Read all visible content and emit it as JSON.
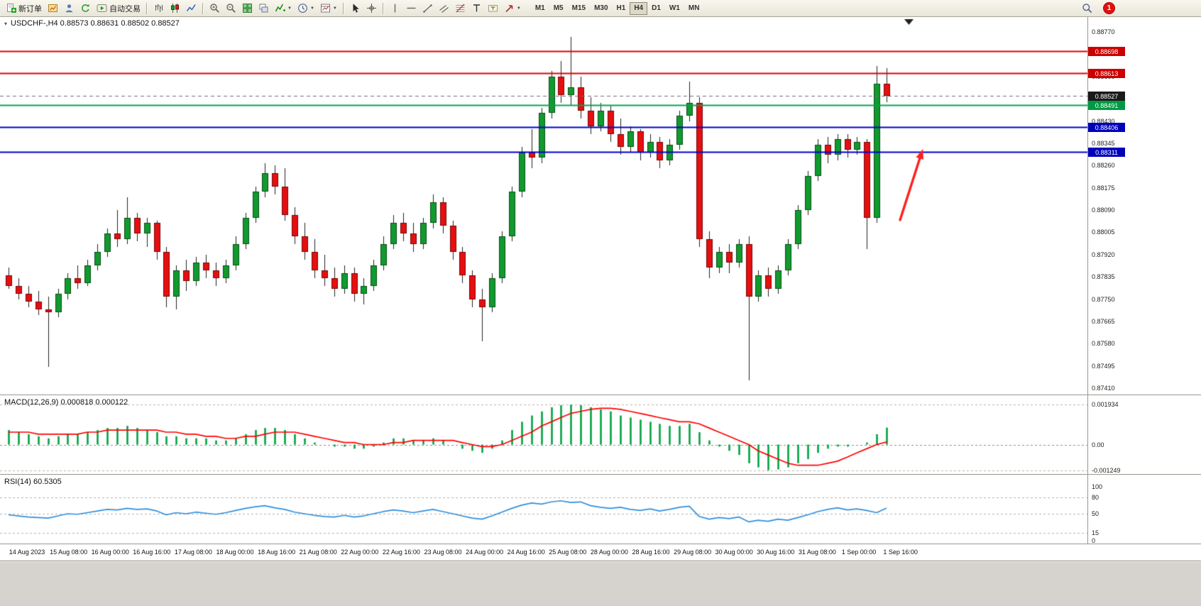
{
  "toolbar": {
    "left_buttons": [
      {
        "name": "new-order",
        "icon": "new-order-icon",
        "label": "新订单"
      },
      {
        "name": "chart-window",
        "icon": "chart-window-icon"
      },
      {
        "name": "profile",
        "icon": "profile-icon"
      },
      {
        "name": "refresh",
        "icon": "refresh-icon"
      },
      {
        "name": "autotrading",
        "icon": "autotrading-icon",
        "label": "自动交易"
      },
      {
        "sep": true
      },
      {
        "name": "bar-chart",
        "icon": "bar-chart-icon"
      },
      {
        "name": "candlestick-chart",
        "icon": "candlestick-icon"
      },
      {
        "name": "line-chart",
        "icon": "line-chart-icon"
      },
      {
        "sep": true
      },
      {
        "name": "zoom-in",
        "icon": "zoom-in-icon"
      },
      {
        "name": "zoom-out",
        "icon": "zoom-out-icon"
      },
      {
        "name": "tile-windows",
        "icon": "tile-windows-icon"
      },
      {
        "name": "arrange-windows",
        "icon": "arrange-windows-icon"
      },
      {
        "name": "indicators",
        "icon": "indicators-icon",
        "caret": true
      },
      {
        "name": "periods",
        "icon": "clock-icon",
        "caret": true
      },
      {
        "name": "templates",
        "icon": "template-icon",
        "caret": true
      },
      {
        "sep": true
      },
      {
        "name": "cursor",
        "icon": "cursor-icon"
      },
      {
        "name": "crosshair",
        "icon": "crosshair-icon"
      },
      {
        "sep": true
      },
      {
        "name": "vertical-line",
        "icon": "vertical-line-icon"
      },
      {
        "name": "horizontal-line",
        "icon": "horizontal-line-icon"
      },
      {
        "name": "trendline",
        "icon": "trendline-icon"
      },
      {
        "name": "equidistant-channel",
        "icon": "channel-icon"
      },
      {
        "name": "fibonacci",
        "icon": "fibonacci-icon"
      },
      {
        "name": "text",
        "icon": "text-icon"
      },
      {
        "name": "text-label",
        "icon": "text-label-icon"
      },
      {
        "name": "arrow-objects",
        "icon": "arrow-shape-icon",
        "caret": true
      }
    ],
    "timeframes": [
      "M1",
      "M5",
      "M15",
      "M30",
      "H1",
      "H4",
      "D1",
      "W1",
      "MN"
    ],
    "active_timeframe": "H4",
    "right": {
      "search_icon": "search-icon",
      "notification_count": "1"
    }
  },
  "chart": {
    "title": "USDCHF-,H4 0.88573 0.88631 0.88502 0.88527"
  },
  "chart_data": {
    "type": "candlestick",
    "symbol": "USDCHF",
    "period": "H4",
    "current_ohlc": {
      "open": 0.88573,
      "high": 0.88631,
      "low": 0.88502,
      "close": 0.88527
    },
    "colors": {
      "up": "#119a2e",
      "down": "#e60f0f",
      "wick": "#222222",
      "macd_hist": "#00a33f",
      "macd_signal": "#ff0000",
      "rsi_line": "#2f8fdd",
      "arrow": "#ff1f1f"
    },
    "price_ticks": [
      0.8877,
      0.88685,
      0.886,
      0.88515,
      0.8843,
      0.88345,
      0.8826,
      0.88175,
      0.8809,
      0.88005,
      0.8792,
      0.87835,
      0.8775,
      0.87665,
      0.8758,
      0.87495,
      0.8741
    ],
    "levels": [
      {
        "price": 0.88698,
        "line_color": "#dd0000",
        "box_color": "#cc0000",
        "style": "solid",
        "width": 2
      },
      {
        "price": 0.88613,
        "line_color": "#dd0000",
        "box_color": "#cc0000",
        "style": "solid",
        "width": 2
      },
      {
        "price": 0.88527,
        "line_color": "#6f6f6f",
        "box_color": "#1a1a1a",
        "style": "dash",
        "width": 1
      },
      {
        "price": 0.88491,
        "line_color": "#00a651",
        "box_color": "#009944",
        "style": "solid",
        "width": 2
      },
      {
        "price": 0.88406,
        "line_color": "#0000cc",
        "box_color": "#0000bb",
        "style": "solid",
        "width": 2
      },
      {
        "price": 0.88311,
        "line_color": "#0000cc",
        "box_color": "#0000bb",
        "style": "solid",
        "width": 2
      }
    ],
    "time_labels": [
      "14 Aug 2023",
      "15 Aug 08:00",
      "16 Aug 00:00",
      "16 Aug 16:00",
      "17 Aug 08:00",
      "18 Aug 00:00",
      "18 Aug 16:00",
      "21 Aug 08:00",
      "22 Aug 00:00",
      "22 Aug 16:00",
      "23 Aug 08:00",
      "24 Aug 00:00",
      "24 Aug 16:00",
      "25 Aug 08:00",
      "28 Aug 00:00",
      "28 Aug 16:00",
      "29 Aug 08:00",
      "30 Aug 00:00",
      "30 Aug 16:00",
      "31 Aug 08:00",
      "1 Sep 00:00",
      "1 Sep 16:00"
    ],
    "candles": [
      [
        0.8784,
        0.8787,
        0.8779,
        0.878
      ],
      [
        0.878,
        0.8783,
        0.8775,
        0.8777
      ],
      [
        0.8777,
        0.878,
        0.8772,
        0.8774
      ],
      [
        0.8774,
        0.8778,
        0.8769,
        0.8771
      ],
      [
        0.8771,
        0.8776,
        0.8749,
        0.877
      ],
      [
        0.877,
        0.8779,
        0.8768,
        0.8777
      ],
      [
        0.8777,
        0.8785,
        0.8775,
        0.8783
      ],
      [
        0.8783,
        0.8788,
        0.8779,
        0.8781
      ],
      [
        0.8781,
        0.879,
        0.878,
        0.8788
      ],
      [
        0.8788,
        0.8796,
        0.8786,
        0.8793
      ],
      [
        0.8793,
        0.8802,
        0.8791,
        0.88
      ],
      [
        0.88,
        0.8809,
        0.8795,
        0.8798
      ],
      [
        0.8798,
        0.8814,
        0.8796,
        0.8806
      ],
      [
        0.8806,
        0.8808,
        0.8797,
        0.88
      ],
      [
        0.88,
        0.8806,
        0.8795,
        0.8804
      ],
      [
        0.8804,
        0.8805,
        0.879,
        0.8793
      ],
      [
        0.8793,
        0.8795,
        0.8772,
        0.8776
      ],
      [
        0.8776,
        0.8788,
        0.8771,
        0.8786
      ],
      [
        0.8786,
        0.879,
        0.8778,
        0.8782
      ],
      [
        0.8782,
        0.8791,
        0.878,
        0.8789
      ],
      [
        0.8789,
        0.8792,
        0.8783,
        0.8786
      ],
      [
        0.8786,
        0.8789,
        0.878,
        0.8783
      ],
      [
        0.8783,
        0.879,
        0.8781,
        0.8788
      ],
      [
        0.8788,
        0.8799,
        0.8786,
        0.8796
      ],
      [
        0.8796,
        0.8808,
        0.8794,
        0.8806
      ],
      [
        0.8806,
        0.8818,
        0.8804,
        0.8816
      ],
      [
        0.8816,
        0.8827,
        0.8814,
        0.8823
      ],
      [
        0.8823,
        0.8826,
        0.8815,
        0.8818
      ],
      [
        0.8818,
        0.8825,
        0.8805,
        0.8807
      ],
      [
        0.8807,
        0.881,
        0.8796,
        0.8799
      ],
      [
        0.8799,
        0.8804,
        0.879,
        0.8793
      ],
      [
        0.8793,
        0.8798,
        0.8783,
        0.8786
      ],
      [
        0.8786,
        0.8792,
        0.878,
        0.8783
      ],
      [
        0.8783,
        0.8787,
        0.8776,
        0.8779
      ],
      [
        0.8779,
        0.8788,
        0.8777,
        0.8785
      ],
      [
        0.8785,
        0.8787,
        0.8774,
        0.8777
      ],
      [
        0.8777,
        0.8783,
        0.8773,
        0.878
      ],
      [
        0.878,
        0.879,
        0.8778,
        0.8788
      ],
      [
        0.8788,
        0.8799,
        0.8786,
        0.8796
      ],
      [
        0.8796,
        0.8807,
        0.8794,
        0.8804
      ],
      [
        0.8804,
        0.8808,
        0.8797,
        0.88
      ],
      [
        0.88,
        0.8804,
        0.8793,
        0.8796
      ],
      [
        0.8796,
        0.8806,
        0.8794,
        0.8804
      ],
      [
        0.8804,
        0.8815,
        0.8802,
        0.8812
      ],
      [
        0.8812,
        0.8814,
        0.88,
        0.8803
      ],
      [
        0.8803,
        0.8805,
        0.879,
        0.8793
      ],
      [
        0.8793,
        0.8795,
        0.8781,
        0.8784
      ],
      [
        0.8784,
        0.8786,
        0.8772,
        0.8775
      ],
      [
        0.8775,
        0.8779,
        0.8759,
        0.8772
      ],
      [
        0.8772,
        0.8785,
        0.877,
        0.8783
      ],
      [
        0.8783,
        0.8801,
        0.8781,
        0.8799
      ],
      [
        0.8799,
        0.8818,
        0.8797,
        0.8816
      ],
      [
        0.8816,
        0.8833,
        0.8814,
        0.8831
      ],
      [
        0.8831,
        0.884,
        0.8825,
        0.8829
      ],
      [
        0.8829,
        0.8848,
        0.8827,
        0.8846
      ],
      [
        0.8846,
        0.8862,
        0.8844,
        0.886
      ],
      [
        0.886,
        0.8866,
        0.885,
        0.8853
      ],
      [
        0.8853,
        0.8875,
        0.8849,
        0.8856
      ],
      [
        0.8856,
        0.886,
        0.8844,
        0.8847
      ],
      [
        0.8847,
        0.8852,
        0.8838,
        0.8841
      ],
      [
        0.8841,
        0.885,
        0.8839,
        0.8847
      ],
      [
        0.8847,
        0.8849,
        0.8835,
        0.8838
      ],
      [
        0.8838,
        0.8844,
        0.883,
        0.8833
      ],
      [
        0.8833,
        0.8841,
        0.8831,
        0.8839
      ],
      [
        0.8839,
        0.884,
        0.8828,
        0.8831
      ],
      [
        0.8831,
        0.8838,
        0.8829,
        0.8835
      ],
      [
        0.8835,
        0.8837,
        0.8825,
        0.8828
      ],
      [
        0.8828,
        0.8836,
        0.8826,
        0.8834
      ],
      [
        0.8834,
        0.8847,
        0.8832,
        0.8845
      ],
      [
        0.8845,
        0.8858,
        0.8843,
        0.885
      ],
      [
        0.885,
        0.8852,
        0.8795,
        0.8798
      ],
      [
        0.8798,
        0.8801,
        0.8783,
        0.8787
      ],
      [
        0.8787,
        0.8795,
        0.8785,
        0.8793
      ],
      [
        0.8793,
        0.8796,
        0.8785,
        0.8789
      ],
      [
        0.8789,
        0.8798,
        0.8787,
        0.8796
      ],
      [
        0.8796,
        0.8799,
        0.8744,
        0.8776
      ],
      [
        0.8776,
        0.8786,
        0.8774,
        0.8784
      ],
      [
        0.8784,
        0.8787,
        0.8776,
        0.8779
      ],
      [
        0.8779,
        0.8788,
        0.8777,
        0.8786
      ],
      [
        0.8786,
        0.8798,
        0.8784,
        0.8796
      ],
      [
        0.8796,
        0.8811,
        0.8794,
        0.8809
      ],
      [
        0.8809,
        0.8824,
        0.8807,
        0.8822
      ],
      [
        0.8822,
        0.8836,
        0.882,
        0.8834
      ],
      [
        0.8834,
        0.8837,
        0.8827,
        0.883
      ],
      [
        0.883,
        0.8838,
        0.8828,
        0.8836
      ],
      [
        0.8836,
        0.8838,
        0.8829,
        0.8832
      ],
      [
        0.8832,
        0.8837,
        0.883,
        0.8835
      ],
      [
        0.8835,
        0.8836,
        0.8794,
        0.8806
      ],
      [
        0.8806,
        0.8864,
        0.8804,
        0.88573
      ],
      [
        0.88573,
        0.88631,
        0.88502,
        0.88527
      ]
    ],
    "arrow": {
      "x1_frac": 0.8277,
      "y1_price": 0.88052,
      "x2_frac": 0.8486,
      "y2_price": 0.88323
    },
    "macd": {
      "display": "MACD(12,26,9) 0.000818 0.000122",
      "ticks": [
        {
          "v": 0.001934,
          "label": "0.001934"
        },
        {
          "v": 0,
          "label": "0.00"
        },
        {
          "v": -0.001249,
          "label": "-0.001249"
        }
      ],
      "histogram": [
        0.0007,
        0.0006,
        0.0005,
        0.0004,
        0.0003,
        0.0004,
        0.0005,
        0.0005,
        0.0006,
        0.0007,
        0.0008,
        0.0008,
        0.0009,
        0.0008,
        0.0007,
        0.0006,
        0.0004,
        0.0004,
        0.0003,
        0.0003,
        0.0003,
        0.0002,
        0.0002,
        0.0003,
        0.0005,
        0.0007,
        0.0008,
        0.0008,
        0.0007,
        0.0005,
        0.0003,
        0.0001,
        0.0,
        -0.0001,
        -0.0001,
        -0.0002,
        -0.0002,
        -0.0001,
        0.0001,
        0.0003,
        0.0003,
        0.0002,
        0.0002,
        0.0003,
        0.0002,
        0.0,
        -0.0002,
        -0.0003,
        -0.0004,
        -0.0002,
        0.0002,
        0.0007,
        0.0011,
        0.0014,
        0.0016,
        0.0018,
        0.0019,
        0.00193,
        0.0019,
        0.0018,
        0.0017,
        0.0016,
        0.0014,
        0.0013,
        0.0012,
        0.0011,
        0.001,
        0.0009,
        0.0009,
        0.001,
        0.0006,
        0.0002,
        -0.0001,
        -0.0003,
        -0.0005,
        -0.0009,
        -0.0011,
        -0.00124,
        -0.0012,
        -0.0011,
        -0.0009,
        -0.0007,
        -0.0004,
        -0.0002,
        -0.0001,
        -0.0001,
        0.0,
        0.0001,
        0.0005,
        0.000818
      ],
      "signal": [
        0.0006,
        0.0006,
        0.0006,
        0.0005,
        0.0005,
        0.0005,
        0.0005,
        0.0005,
        0.0006,
        0.0006,
        0.0007,
        0.0007,
        0.0007,
        0.0007,
        0.0007,
        0.0007,
        0.0006,
        0.0006,
        0.0005,
        0.0005,
        0.0004,
        0.0004,
        0.0003,
        0.0003,
        0.0004,
        0.0004,
        0.0005,
        0.0006,
        0.0006,
        0.0006,
        0.0005,
        0.0004,
        0.0003,
        0.0002,
        0.0001,
        0.0001,
        0.0,
        0.0,
        0.0,
        0.0001,
        0.0001,
        0.0002,
        0.0002,
        0.0002,
        0.0002,
        0.0002,
        0.0001,
        0.0,
        -0.0001,
        -0.0001,
        0.0,
        0.0002,
        0.0004,
        0.0006,
        0.0009,
        0.0011,
        0.0013,
        0.0015,
        0.0016,
        0.0017,
        0.00175,
        0.00175,
        0.0017,
        0.0016,
        0.0015,
        0.0014,
        0.0013,
        0.0012,
        0.0011,
        0.0011,
        0.001,
        0.0008,
        0.0006,
        0.0004,
        0.0002,
        0.0,
        -0.0003,
        -0.0005,
        -0.0007,
        -0.0009,
        -0.001,
        -0.001,
        -0.001,
        -0.0009,
        -0.0008,
        -0.0006,
        -0.0004,
        -0.0002,
        0.0,
        0.000122
      ]
    },
    "rsi": {
      "display": "RSI(14) 60.5305",
      "ticks": [
        {
          "v": 100,
          "label": "100"
        },
        {
          "v": 80,
          "label": "80"
        },
        {
          "v": 50,
          "label": "50"
        },
        {
          "v": 15,
          "label": "15"
        },
        {
          "v": 0,
          "label": "0"
        }
      ],
      "levels_dashed": [
        80,
        50,
        15
      ],
      "values": [
        48,
        46,
        44,
        43,
        42,
        46,
        50,
        49,
        52,
        55,
        58,
        57,
        60,
        58,
        59,
        55,
        48,
        52,
        50,
        53,
        51,
        49,
        52,
        56,
        60,
        63,
        65,
        61,
        58,
        53,
        50,
        47,
        45,
        44,
        47,
        44,
        46,
        50,
        54,
        57,
        55,
        52,
        55,
        58,
        54,
        50,
        46,
        42,
        40,
        46,
        53,
        60,
        66,
        70,
        68,
        72,
        74,
        71,
        72,
        65,
        62,
        60,
        62,
        58,
        56,
        59,
        55,
        58,
        62,
        64,
        45,
        40,
        43,
        41,
        44,
        35,
        38,
        36,
        40,
        38,
        43,
        48,
        54,
        58,
        61,
        57,
        59,
        56,
        52,
        60.53
      ]
    }
  }
}
